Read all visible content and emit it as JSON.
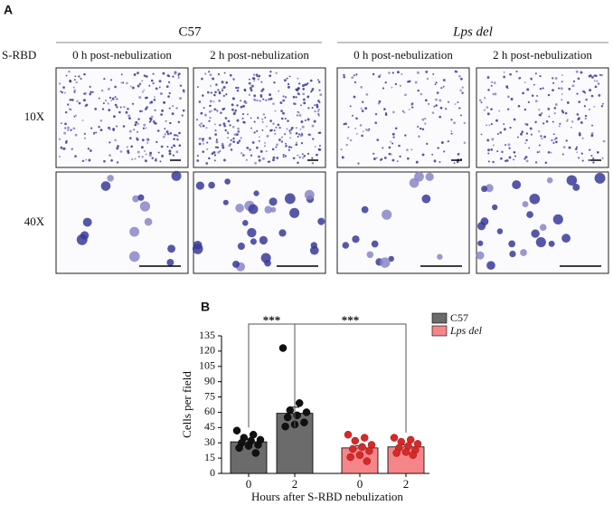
{
  "panel_a": {
    "label": "A",
    "row_header": "S-RBD",
    "groups": [
      "C57",
      "Lps del"
    ],
    "columns": [
      "0 h post-nebulization",
      "2 h post-nebulization",
      "0 h post-nebulization",
      "2 h post-nebulization"
    ],
    "rows": [
      "10X",
      "40X"
    ]
  },
  "chart_data": {
    "type": "bar",
    "panel_label": "B",
    "ylabel": "Cells per field",
    "xlabel": "Hours after S-RBD nebulization",
    "categories": [
      "0",
      "2"
    ],
    "ylim": [
      0,
      135
    ],
    "yticks": [
      0,
      15,
      30,
      45,
      60,
      75,
      90,
      105,
      120,
      135
    ],
    "legend": "top-right",
    "series": [
      {
        "name": "C57",
        "color": "#6b6b6b",
        "point_color": "#111111",
        "values": [
          31,
          59
        ],
        "errors": [
          2.5,
          6
        ],
        "points": [
          [
            42,
            38,
            35,
            33,
            32,
            30,
            28,
            27,
            25,
            20
          ],
          [
            123,
            69,
            62,
            60,
            57,
            55,
            50,
            48,
            46
          ]
        ]
      },
      {
        "name": "Lps del",
        "color": "#f4868a",
        "point_color": "#d42a2a",
        "values": [
          25,
          26
        ],
        "errors": [
          2,
          2
        ],
        "points": [
          [
            38,
            35,
            32,
            28,
            26,
            24,
            22,
            18,
            16,
            12
          ],
          [
            35,
            33,
            31,
            29,
            27,
            25,
            23,
            21,
            20,
            18
          ]
        ]
      }
    ],
    "annotations": [
      "***",
      "***"
    ]
  }
}
